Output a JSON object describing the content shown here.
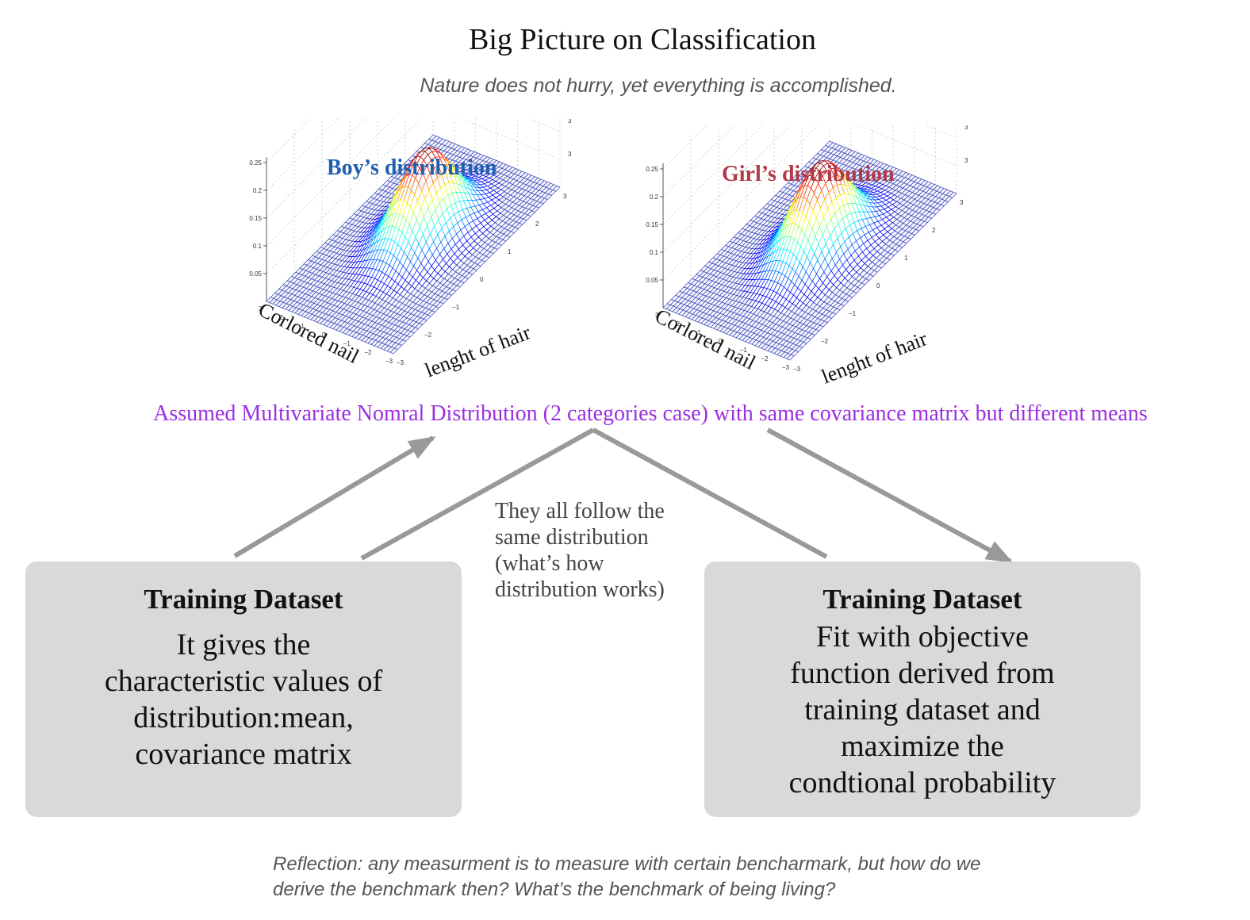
{
  "title": "Big Picture on Classification",
  "subtitle": "Nature does not hurry, yet everything is accomplished.",
  "plots": [
    {
      "title": "Boy’s distribution",
      "title_color": "#1f5fb0",
      "x_axis_label": "Corlored nail",
      "y_axis_label": "lenght of hair",
      "z_ticks": [
        "0.25",
        "0.2",
        "0.15",
        "0.1",
        "0.05"
      ],
      "x_ticks": [
        "3",
        "2",
        "1",
        "0",
        "−1",
        "−2",
        "−3"
      ],
      "y_ticks": [
        "−3",
        "−2",
        "−1",
        "0",
        "1",
        "2",
        "3"
      ],
      "right_ticks": [
        "3",
        "3",
        "3",
        "3"
      ]
    },
    {
      "title": "Girl’s distribution",
      "title_color": "#b03a48",
      "x_axis_label": "Corlored nail",
      "y_axis_label": "lenght of hair",
      "z_ticks": [
        "0.25",
        "0.2",
        "0.15",
        "0.1",
        "0.05"
      ],
      "x_ticks": [
        "3",
        "2",
        "1",
        "0",
        "−1",
        "−2",
        "−3"
      ],
      "y_ticks": [
        "−3",
        "−2",
        "−1",
        "0",
        "1",
        "2",
        "3"
      ],
      "right_ticks": [
        "3",
        "3",
        "3",
        "3"
      ]
    }
  ],
  "assumption": "Assumed Multivariate Nomral Distribution (2 categories case) with same covariance matrix but different means",
  "middle_note": "They all follow the same distribution (what’s how distribution works)",
  "left_box": {
    "title": "Training Dataset",
    "body": [
      "It gives the",
      "characteristic values of",
      "distribution:mean,",
      "covariance matrix"
    ]
  },
  "right_box": {
    "title": "Training Dataset",
    "body": [
      "Fit with objective",
      "function derived from",
      "training dataset and",
      "maximize the",
      "condtional probability"
    ]
  },
  "reflection": "Reflection: any measurment is to measure with certain bencharmark, but how do we derive the benchmark then? What’s the benchmark of being living?",
  "colors": {
    "arrow": "#999999",
    "box_fill": "#d9d9d9",
    "mesh_base": "#3a46b8",
    "assumption_text": "#9b2fe0"
  }
}
